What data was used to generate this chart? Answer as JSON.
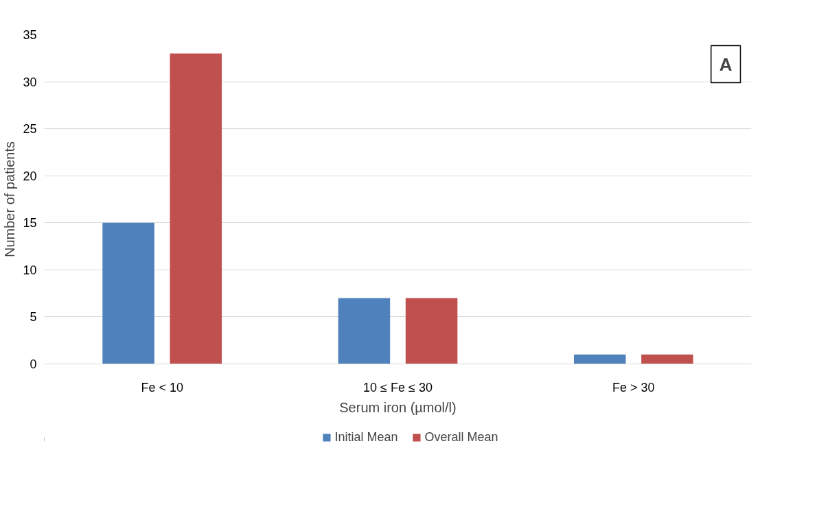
{
  "chart_data": {
    "type": "bar",
    "categories": [
      "Fe < 10",
      "10 ≤ Fe ≤ 30",
      "Fe > 30"
    ],
    "series": [
      {
        "name": "Initial Mean",
        "color": "#4f81bd",
        "values": [
          15,
          7,
          1
        ]
      },
      {
        "name": "Overall Mean",
        "color": "#c0504d",
        "values": [
          33,
          7,
          1
        ]
      }
    ],
    "xlabel": "Serum iron (µmol/l)",
    "ylabel": "Number of patients",
    "ylim": [
      0,
      35
    ],
    "yticks": [
      0,
      5,
      10,
      15,
      20,
      25,
      30,
      35
    ],
    "grid": "y",
    "legend": "bottom",
    "annotations": [
      "A"
    ]
  }
}
